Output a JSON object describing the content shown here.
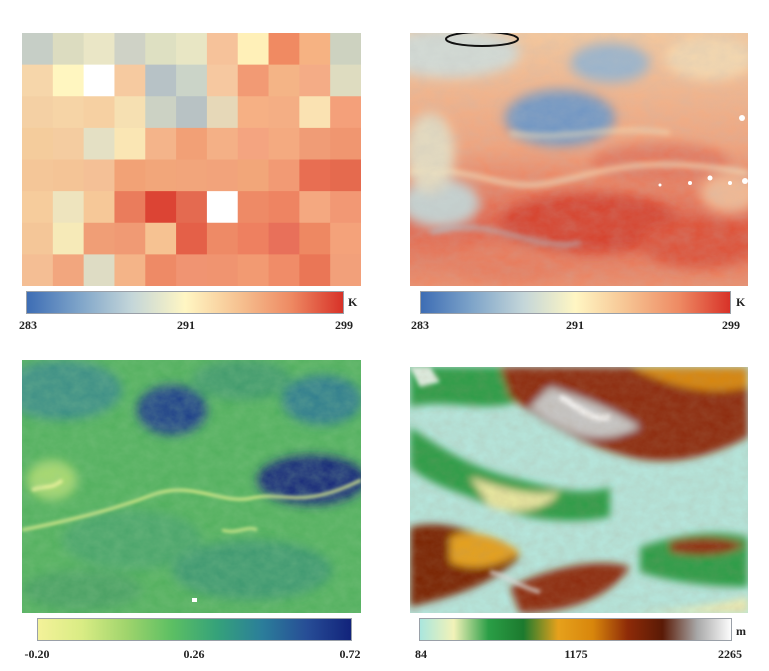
{
  "panels": [
    {
      "id": "coarse-lst",
      "colorbar": {
        "colors": [
          "#3c6cb4",
          "#7ea4c9",
          "#c4d6d9",
          "#fff6c3",
          "#f6c392",
          "#ee8a63",
          "#d73027"
        ],
        "ticks": [
          "283",
          "291",
          "299"
        ],
        "unit": "K"
      },
      "grid_colors": [
        [
          "#c6cec6",
          "#dcdcc0",
          "#eae6c6",
          "#cfd2c6",
          "#dee0c2",
          "#e8e6c4",
          "#f6c29a",
          "#fff0b8",
          "#f08a62",
          "#f6b282",
          "#cdd2c0"
        ],
        [
          "#f6d6aa",
          "#fff6c0",
          "#ffffff",
          "#f6caa0",
          "#b7c2c6",
          "#cbd4c8",
          "#f6c8a0",
          "#f29a74",
          "#f4b486",
          "#f4ac86",
          "#dedcc0"
        ],
        [
          "#f4d0a4",
          "#f6d4a6",
          "#f6d0a2",
          "#f6e0b2",
          "#ccd2c4",
          "#b8c2c4",
          "#e6d8b8",
          "#f6b084",
          "#f4ae84",
          "#fae2b2",
          "#f4a07a"
        ],
        [
          "#f4cc9c",
          "#f4cca0",
          "#e4e0c4",
          "#fae6b4",
          "#f4b48a",
          "#f2a076",
          "#f4b086",
          "#f4a480",
          "#f4aa80",
          "#f09c76",
          "#f09670"
        ],
        [
          "#f4c698",
          "#f4c496",
          "#f4c096",
          "#f2a276",
          "#f2a67a",
          "#f2a57b",
          "#f2a37b",
          "#f2a679",
          "#f29a74",
          "#e86e52",
          "#e56a4e"
        ],
        [
          "#f6cc9c",
          "#eee4be",
          "#f6c898",
          "#ea7c5c",
          "#dc4434",
          "#e46a50",
          "#ffffff",
          "#ee8a66",
          "#ee8462",
          "#f4a880",
          "#f29874"
        ],
        [
          "#f4c698",
          "#f6eab8",
          "#f09e76",
          "#f09a74",
          "#f6c292",
          "#e46048",
          "#ee8a66",
          "#ee8060",
          "#e8705a",
          "#ee8862",
          "#f4a27a"
        ],
        [
          "#f4be94",
          "#f2a67e",
          "#dedcc4",
          "#f4b488",
          "#ee8a66",
          "#f09472",
          "#f09470",
          "#f29a72",
          "#f08c68",
          "#ea7656",
          "#f2a07a"
        ]
      ]
    },
    {
      "id": "fine-lst",
      "colorbar": {
        "colors": [
          "#3c6cb4",
          "#7ea4c9",
          "#c4d6d9",
          "#fff6c3",
          "#f6c392",
          "#ee8a63",
          "#d73027"
        ],
        "ticks": [
          "283",
          "291",
          "299"
        ],
        "unit": "K"
      }
    },
    {
      "id": "ndvi",
      "colorbar": {
        "colors": [
          "#f4f29a",
          "#d9ec84",
          "#9fd46c",
          "#5cbf63",
          "#35a27a",
          "#2b7e9a",
          "#274d96",
          "#11227a"
        ],
        "ticks": [
          "-0.20",
          "0.26",
          "0.72"
        ],
        "unit": ""
      }
    },
    {
      "id": "dem",
      "colorbar": {
        "colors": [
          "#a8e6df",
          "#f2f2b8",
          "#2a9e46",
          "#1c7a2e",
          "#e6a11c",
          "#d8860c",
          "#8e2b08",
          "#5a1a06",
          "#a8a8a8",
          "#ffffff"
        ],
        "ticks": [
          "84",
          "1175",
          "2265"
        ],
        "unit": "m"
      }
    }
  ]
}
